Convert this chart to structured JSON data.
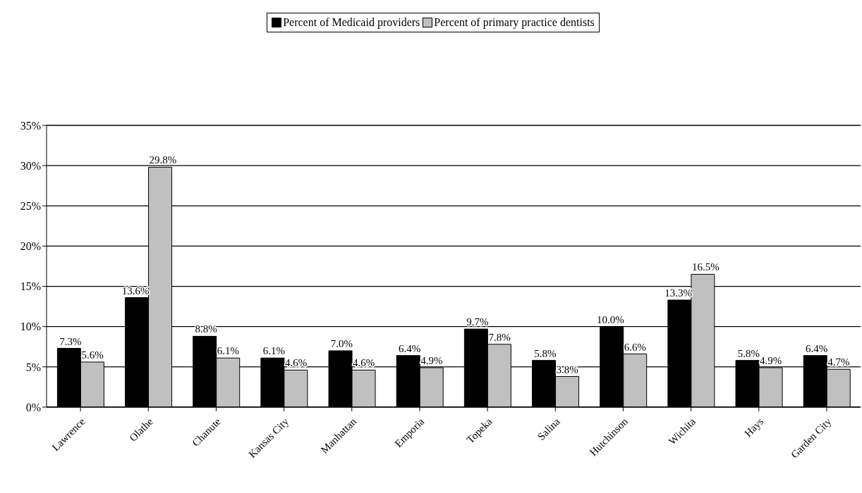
{
  "chart_data": {
    "type": "bar",
    "categories": [
      "Lawrence",
      "Olathe",
      "Chanute",
      "Kansas City",
      "Manhattan",
      "Emporia",
      "Topeka",
      "Salina",
      "Hutchinson",
      "Wichita",
      "Hays",
      "Garden City"
    ],
    "series": [
      {
        "name": "Percent of Medicaid providers",
        "color": "#000000",
        "values": [
          7.3,
          13.6,
          8.8,
          6.1,
          7.0,
          6.4,
          9.7,
          5.8,
          10.0,
          13.3,
          5.8,
          6.4
        ],
        "value_labels": [
          "7.3%",
          "13.6%",
          "8.8%",
          "6.1%",
          "7.0%",
          "6.4%",
          "9.7%",
          "5.8%",
          "10.0%",
          "13.3%",
          "5.8%",
          "6.4%"
        ]
      },
      {
        "name": "Percent of primary practice dentists",
        "color": "#c0c0c0",
        "values": [
          5.6,
          29.8,
          6.1,
          4.6,
          4.6,
          4.9,
          7.8,
          3.8,
          6.6,
          16.5,
          4.9,
          4.7
        ],
        "value_labels": [
          "5.6%",
          "29.8%",
          "6.1%",
          "4.6%",
          "4.6%",
          "4.9%",
          "7.8%",
          "3.8%",
          "6.6%",
          "16.5%",
          "4.9%",
          "4.7%"
        ]
      }
    ],
    "ylim": [
      0,
      35
    ],
    "yticks": [
      {
        "value": 0,
        "label": "0%"
      },
      {
        "value": 5,
        "label": "5%"
      },
      {
        "value": 10,
        "label": "10%"
      },
      {
        "value": 15,
        "label": "15%"
      },
      {
        "value": 20,
        "label": "20%"
      },
      {
        "value": 25,
        "label": "25%"
      },
      {
        "value": 30,
        "label": "30%"
      },
      {
        "value": 35,
        "label": "35%"
      }
    ],
    "grid": "y",
    "legend": "top"
  }
}
